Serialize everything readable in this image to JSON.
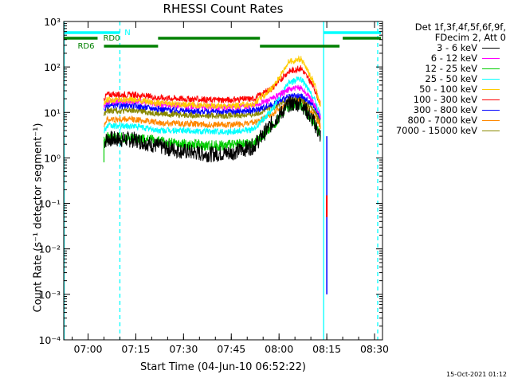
{
  "chart_data": {
    "type": "line",
    "title": "RHESSI Count Rates",
    "xlabel": "Start Time (04-Jun-10 06:52:22)",
    "ylabel": "Count Rate (s⁻¹ detector segment⁻¹)",
    "x_ticks": [
      "07:00",
      "07:15",
      "07:30",
      "07:45",
      "08:00",
      "08:15",
      "08:30"
    ],
    "x_range": [
      "06:52:22",
      "08:32:30"
    ],
    "y_scale": "log",
    "y_ticks": [
      "10⁻⁴",
      "10⁻³",
      "10⁻²",
      "10⁻¹",
      "10⁰",
      "10¹",
      "10²",
      "10³"
    ],
    "ylim": [
      0.0001,
      1000
    ],
    "legend": {
      "header": [
        "Det 1f,3f,4f,5f,6f,9f,",
        "FDecim 2, Att 0"
      ],
      "position": "top-right"
    },
    "series": [
      {
        "name": "3 - 6 keV",
        "color": "#000000",
        "x": [
          "07:05",
          "07:06",
          "07:15",
          "07:22",
          "07:30",
          "07:38",
          "07:45",
          "07:52",
          "07:58",
          "08:03",
          "08:07",
          "08:11",
          "08:13"
        ],
        "y": [
          2.2,
          2.6,
          2.5,
          1.8,
          1.4,
          1.2,
          1.3,
          1.8,
          6,
          15,
          16,
          6,
          3
        ]
      },
      {
        "name": "6 - 12 keV",
        "color": "#ff00ff",
        "x": [
          "07:05",
          "07:06",
          "07:15",
          "07:22",
          "07:30",
          "07:38",
          "07:45",
          "07:52",
          "07:58",
          "08:03",
          "08:07",
          "08:11",
          "08:13"
        ],
        "y": [
          14,
          17,
          18,
          15,
          14,
          13,
          13,
          14,
          20,
          32,
          35,
          16,
          8
        ]
      },
      {
        "name": "12 - 25 keV",
        "color": "#00cc00",
        "x": [
          "07:05",
          "07:06",
          "07:15",
          "07:22",
          "07:30",
          "07:38",
          "07:45",
          "07:52",
          "07:58",
          "08:03",
          "08:07",
          "08:11",
          "08:13"
        ],
        "y": [
          2.3,
          2.8,
          2.8,
          2.3,
          2.0,
          1.9,
          1.9,
          2.1,
          5,
          14,
          15,
          6,
          3
        ]
      },
      {
        "name": "25 - 50 keV",
        "color": "#00ffff",
        "x": [
          "07:05",
          "07:06",
          "07:15",
          "07:22",
          "07:30",
          "07:38",
          "07:45",
          "07:52",
          "07:58",
          "08:03",
          "08:07",
          "08:11",
          "08:13"
        ],
        "y": [
          4,
          5,
          5,
          4,
          4,
          3.8,
          3.8,
          4.2,
          12,
          45,
          55,
          20,
          9
        ]
      },
      {
        "name": "50 - 100 keV",
        "color": "#ffcc00",
        "x": [
          "07:05",
          "07:06",
          "07:15",
          "07:22",
          "07:30",
          "07:38",
          "07:45",
          "07:52",
          "07:58",
          "08:03",
          "08:07",
          "08:11",
          "08:13"
        ],
        "y": [
          15,
          19,
          19,
          16,
          15,
          14,
          14,
          15,
          35,
          130,
          150,
          45,
          14
        ]
      },
      {
        "name": "100 - 300 keV",
        "color": "#ff0000",
        "x": [
          "07:05",
          "07:06",
          "07:15",
          "07:22",
          "07:30",
          "07:38",
          "07:45",
          "07:52",
          "07:58",
          "08:03",
          "08:07",
          "08:11",
          "08:13"
        ],
        "y": [
          20,
          25,
          24,
          21,
          20,
          19,
          19,
          20,
          35,
          80,
          95,
          35,
          15
        ]
      },
      {
        "name": "300 - 800 keV",
        "color": "#0000ff",
        "x": [
          "07:05",
          "07:06",
          "07:15",
          "07:22",
          "07:30",
          "07:38",
          "07:45",
          "07:52",
          "07:58",
          "08:03",
          "08:07",
          "08:11",
          "08:13"
        ],
        "y": [
          11,
          14,
          14,
          12,
          11,
          10.5,
          10.5,
          11,
          15,
          22,
          23,
          14,
          8
        ]
      },
      {
        "name": "800 - 7000 keV",
        "color": "#ff8800",
        "x": [
          "07:05",
          "07:06",
          "07:15",
          "07:22",
          "07:30",
          "07:38",
          "07:45",
          "07:52",
          "07:58",
          "08:03",
          "08:07",
          "08:11",
          "08:13"
        ],
        "y": [
          5.5,
          7,
          7,
          6,
          5.7,
          5.4,
          5.4,
          5.8,
          9,
          17,
          19,
          9,
          5
        ]
      },
      {
        "name": "7000 - 15000 keV",
        "color": "#888800",
        "x": [
          "07:05",
          "07:06",
          "07:15",
          "07:22",
          "07:30",
          "07:38",
          "07:45",
          "07:52",
          "07:58",
          "08:03",
          "08:07",
          "08:11",
          "08:13"
        ],
        "y": [
          9,
          11,
          11,
          9.5,
          9,
          8.5,
          8.5,
          9,
          13,
          19,
          20,
          11,
          6
        ]
      }
    ],
    "annotations": {
      "attenuator_labels": [
        "N",
        "RD0",
        "RD6"
      ],
      "flag_bars": [
        {
          "label": "N",
          "color": "#00ffff",
          "segments": [
            [
              "06:52:22",
              "07:10"
            ],
            [
              "08:14",
              "08:32"
            ]
          ]
        },
        {
          "label": "RD0",
          "color": "#008000",
          "segments": [
            [
              "06:52:22",
              "07:03"
            ],
            [
              "07:22",
              "07:54"
            ],
            [
              "08:20",
              "08:32"
            ]
          ]
        },
        {
          "label": "RD6",
          "color": "#008000",
          "segments": [
            [
              "07:05",
              "07:22"
            ],
            [
              "07:54",
              "08:19"
            ]
          ]
        }
      ],
      "vertical_lines": [
        {
          "time": "06:52:30",
          "color": "#00ffff",
          "style": "solid"
        },
        {
          "time": "07:10",
          "color": "#00ffff",
          "style": "dashed"
        },
        {
          "time": "08:14",
          "color": "#00ffff",
          "style": "solid"
        },
        {
          "time": "08:31",
          "color": "#00ffff",
          "style": "dashed"
        }
      ],
      "drop_out": {
        "time": "08:15",
        "colors": [
          "#ff0000",
          "#0000ff"
        ],
        "min": 0.001
      }
    },
    "grid": false
  },
  "footer": {
    "timestamp": "15-Oct-2021 01:12"
  }
}
